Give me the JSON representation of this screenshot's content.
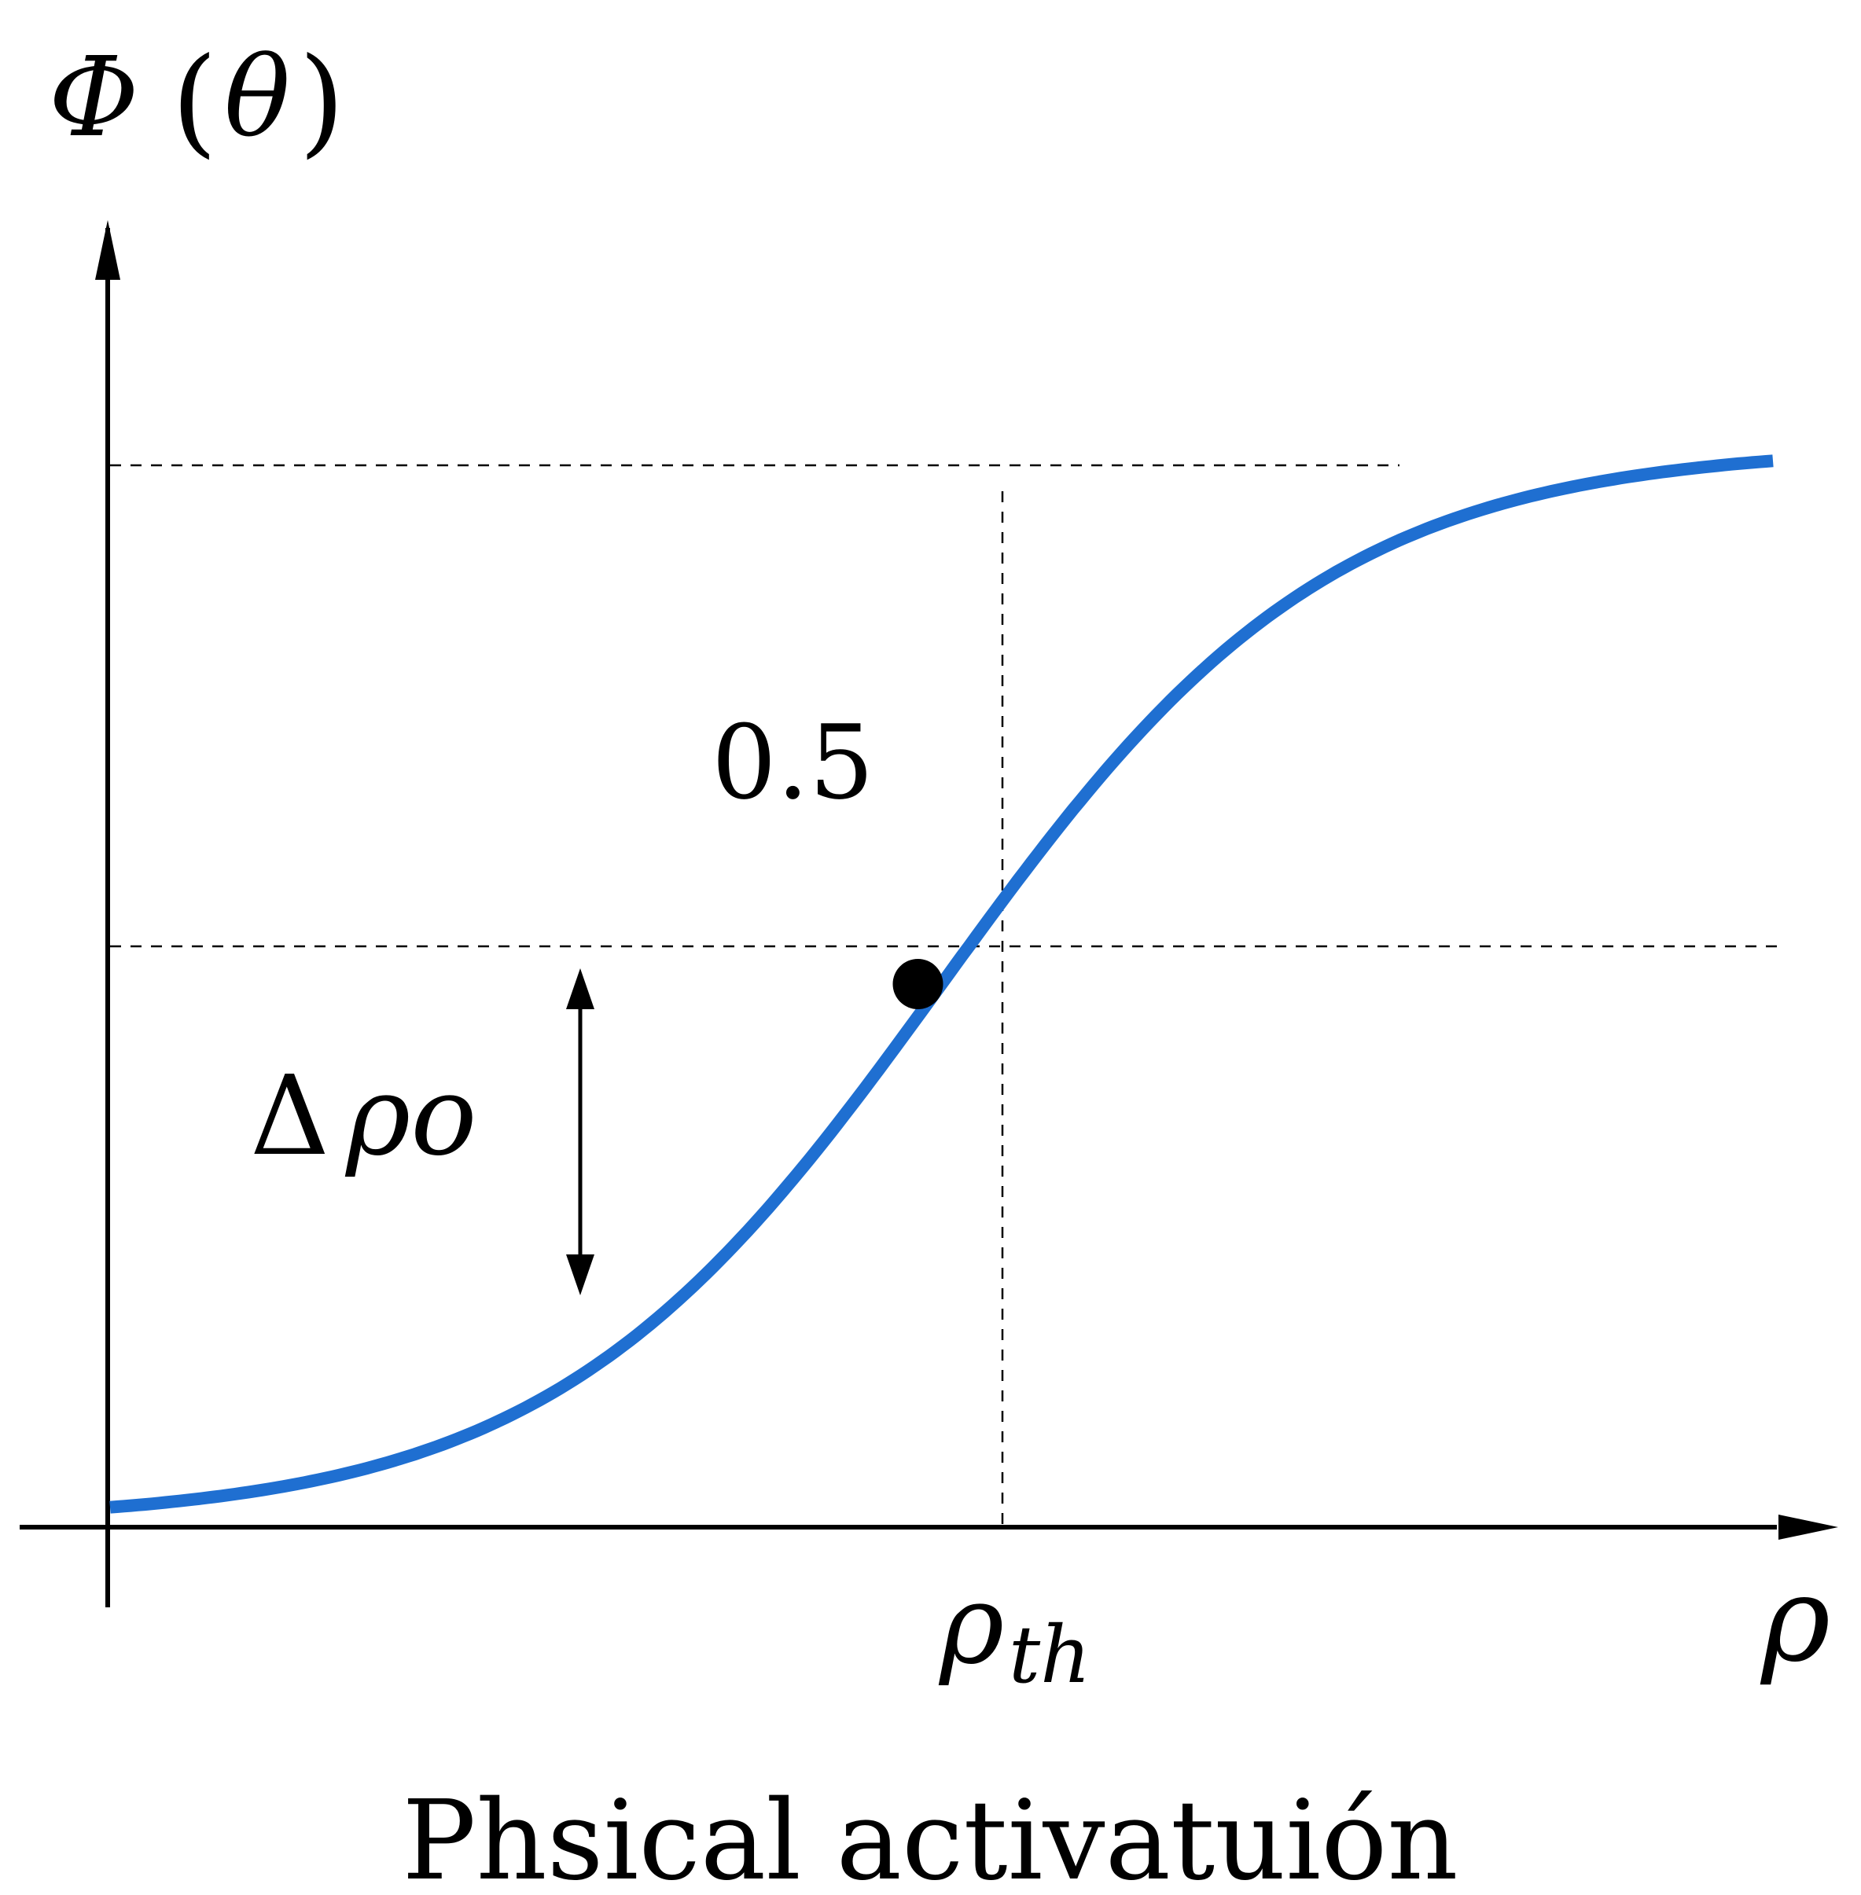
{
  "title": "Phsical activatuión",
  "y_axis_label": {
    "symbol": "Φ",
    "open_paren": "(",
    "argument": "θ",
    "close_paren": ")"
  },
  "x_axis_label": "ρ",
  "threshold_label": {
    "symbol": "ρ",
    "subscript": "th"
  },
  "midpoint_value_label": "0.5",
  "width_label": {
    "delta": "Δ",
    "symbol": "ρo"
  },
  "colors": {
    "curve": "#1f6fd1",
    "axes": "#000000",
    "guides": "#000000",
    "marker": "#000000"
  },
  "chart_data": {
    "type": "line",
    "x_range": [
      0,
      1
    ],
    "y_range": [
      0,
      1
    ],
    "threshold_x": 0.5,
    "midpoint": {
      "x": 0.5,
      "y": 0.5
    },
    "steepness": 8.5,
    "upper_asymptote_y": 1.0
  }
}
